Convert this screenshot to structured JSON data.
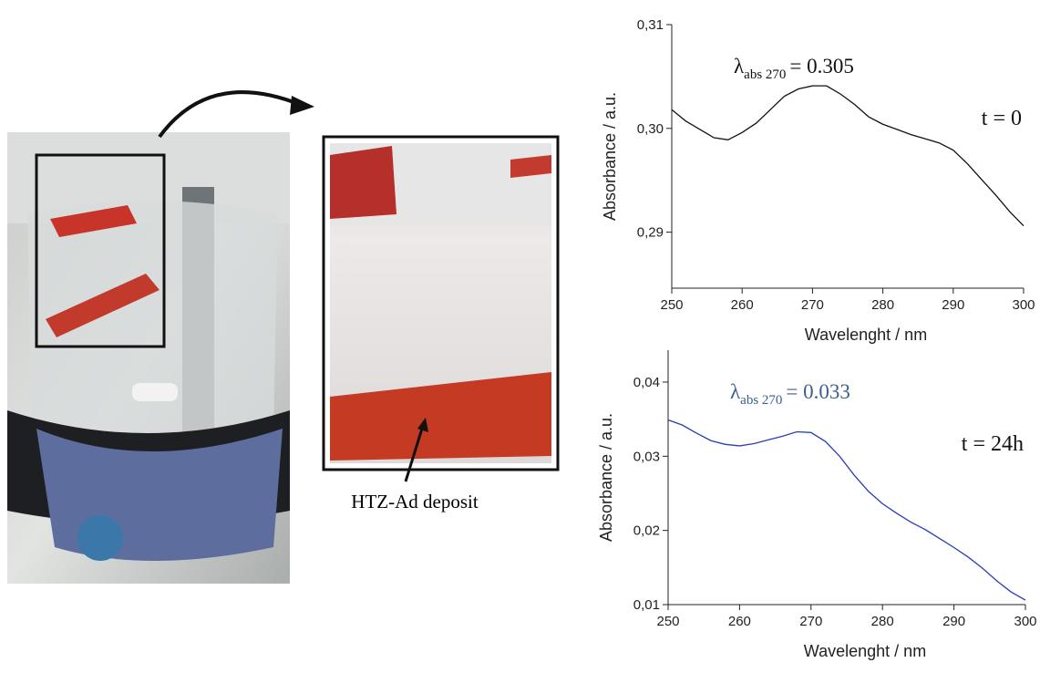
{
  "figure": {
    "callout": "HTZ-Ad deposit"
  },
  "chart_data": [
    {
      "type": "line",
      "xlabel": "Wavelenght / nm",
      "ylabel": "Absorbance / a.u.",
      "annotation": {
        "symbol": "λ",
        "subscript": "abs 270",
        "text": "= 0.305"
      },
      "label": "t = 0",
      "xlim": [
        250,
        300
      ],
      "xticks": [
        250,
        260,
        270,
        280,
        290,
        300
      ],
      "ylim": [
        0.2846,
        0.31
      ],
      "yticks": [
        {
          "value": 0.29,
          "label": "0,29"
        },
        {
          "value": 0.3,
          "label": "0,30"
        },
        {
          "value": 0.31,
          "label": "0,31"
        }
      ],
      "x": [
        250,
        252,
        254,
        256,
        258,
        260,
        262,
        264,
        266,
        268,
        270,
        272,
        274,
        276,
        278,
        280,
        282,
        284,
        286,
        288,
        290,
        292,
        294,
        296,
        298,
        300
      ],
      "series": [
        {
          "color": "#111111",
          "values": [
            0.3018,
            0.3007,
            0.2999,
            0.2991,
            0.2989,
            0.2996,
            0.3005,
            0.3018,
            0.3031,
            0.3038,
            0.3041,
            0.3041,
            0.3033,
            0.3023,
            0.3011,
            0.3004,
            0.2999,
            0.2994,
            0.299,
            0.2986,
            0.2979,
            0.2966,
            0.2951,
            0.2936,
            0.292,
            0.2906
          ]
        }
      ]
    },
    {
      "type": "line",
      "xlabel": "Wavelenght / nm",
      "ylabel": "Absorbance / a.u.",
      "annotation": {
        "symbol": "λ",
        "subscript": "abs 270",
        "text": "= 0.033"
      },
      "label": "t = 24h",
      "xlim": [
        250,
        300
      ],
      "xticks": [
        250,
        260,
        270,
        280,
        290,
        300
      ],
      "ylim": [
        0.01,
        0.0443
      ],
      "yticks": [
        {
          "value": 0.01,
          "label": "0,01"
        },
        {
          "value": 0.02,
          "label": "0,02"
        },
        {
          "value": 0.03,
          "label": "0,03"
        },
        {
          "value": 0.04,
          "label": "0,04"
        }
      ],
      "x": [
        250,
        252,
        254,
        256,
        258,
        260,
        262,
        264,
        266,
        268,
        270,
        272,
        274,
        276,
        278,
        280,
        282,
        284,
        286,
        288,
        290,
        292,
        294,
        296,
        298,
        300
      ],
      "series": [
        {
          "color": "#2a3db8",
          "values": [
            0.0349,
            0.0342,
            0.0331,
            0.0321,
            0.0316,
            0.0314,
            0.0317,
            0.0322,
            0.0327,
            0.0333,
            0.0332,
            0.032,
            0.03,
            0.0275,
            0.0253,
            0.0236,
            0.0223,
            0.0211,
            0.0201,
            0.0189,
            0.0177,
            0.0164,
            0.0149,
            0.0132,
            0.0117,
            0.0106
          ]
        }
      ]
    }
  ]
}
